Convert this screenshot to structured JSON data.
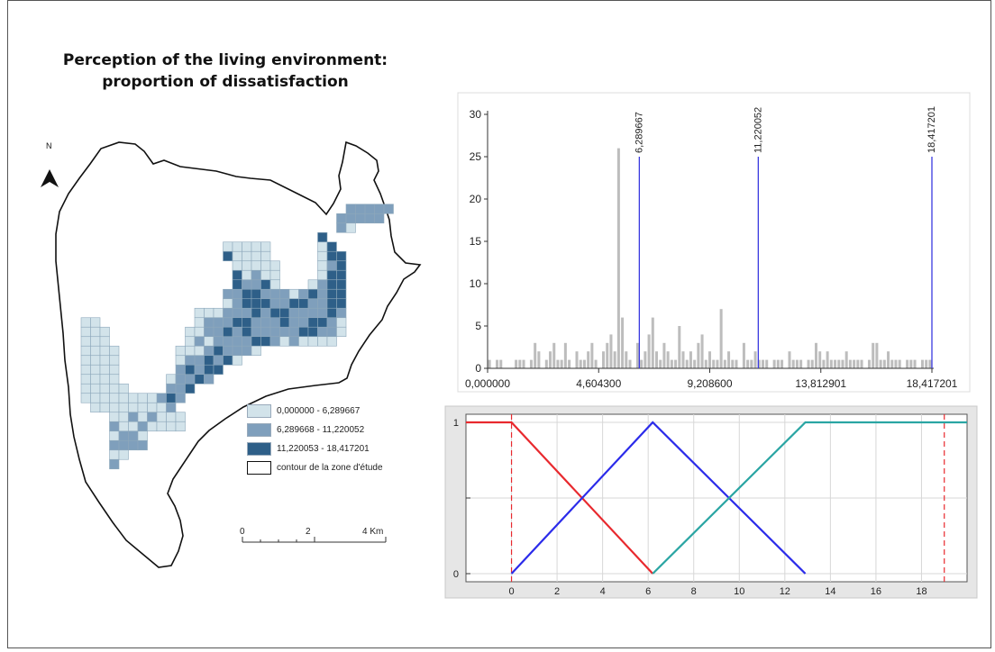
{
  "map": {
    "title_line1": "Perception of the living environment:",
    "title_line2": "proportion of dissatisfaction",
    "north_label": "N",
    "legend": [
      {
        "label": "0,000000 - 6,289667",
        "color": "#d2e3ea"
      },
      {
        "label": "6,289668 - 11,220052",
        "color": "#7f9fbc"
      },
      {
        "label": "11,220053 - 18,417201",
        "color": "#2e5f88"
      },
      {
        "label": "contour de la zone d'étude",
        "color": "#ffffff"
      }
    ],
    "scale": {
      "labels": [
        "0",
        "2",
        "4 Km"
      ]
    }
  },
  "chart_data": [
    {
      "type": "bar",
      "title": "",
      "xlabel": "",
      "ylabel": "",
      "xlim": [
        0,
        18.417201
      ],
      "ylim": [
        0,
        30
      ],
      "y_ticks": [
        "0",
        "5",
        "10",
        "15",
        "20",
        "25",
        "30"
      ],
      "x_tick_labels": [
        "0,000000",
        "4,604300",
        "9,208600",
        "13,812901",
        "18,417201"
      ],
      "x_tick_values": [
        0,
        4.6043,
        9.2086,
        13.812901,
        18.417201
      ],
      "breaks": [
        {
          "value": 6.289667,
          "label": "6,289667"
        },
        {
          "value": 11.220052,
          "label": "11,220052"
        },
        {
          "value": 18.417201,
          "label": "18,417201"
        }
      ],
      "values": [
        1,
        0,
        1,
        1,
        0,
        0,
        0,
        1,
        1,
        1,
        0,
        1,
        3,
        2,
        0,
        1,
        2,
        3,
        1,
        1,
        3,
        1,
        0,
        2,
        1,
        1,
        2,
        3,
        1,
        0,
        2,
        3,
        4,
        2,
        26,
        6,
        2,
        1,
        0,
        3,
        1,
        2,
        4,
        6,
        2,
        1,
        3,
        2,
        1,
        1,
        5,
        2,
        1,
        2,
        1,
        3,
        4,
        1,
        2,
        1,
        1,
        7,
        1,
        2,
        1,
        1,
        0,
        3,
        1,
        1,
        2,
        1,
        1,
        1,
        0,
        1,
        1,
        1,
        0,
        2,
        1,
        1,
        1,
        0,
        1,
        1,
        3,
        2,
        1,
        2,
        1,
        1,
        1,
        1,
        2,
        1,
        1,
        1,
        1,
        0,
        1,
        3,
        3,
        1,
        1,
        2,
        1,
        1,
        1,
        0,
        1,
        1,
        1,
        0,
        1,
        1,
        1
      ]
    },
    {
      "type": "line",
      "title": "",
      "xlabel": "",
      "ylabel": "",
      "xlim": [
        -2,
        20
      ],
      "ylim": [
        0,
        1
      ],
      "x_ticks": [
        "0",
        "2",
        "4",
        "6",
        "8",
        "10",
        "12",
        "14",
        "16",
        "18"
      ],
      "y_ticks": [
        "0",
        "1"
      ],
      "vlines": [
        0,
        19
      ],
      "series": [
        {
          "color": "#e8292e",
          "x": [
            -2,
            0,
            6.2
          ],
          "y": [
            1,
            1,
            0
          ]
        },
        {
          "color": "#2b2bea",
          "x": [
            0,
            6.2,
            12.9
          ],
          "y": [
            0,
            1,
            0
          ]
        },
        {
          "color": "#2aa5a3",
          "x": [
            6.2,
            12.9,
            20
          ],
          "y": [
            0,
            1,
            1
          ]
        }
      ]
    }
  ]
}
